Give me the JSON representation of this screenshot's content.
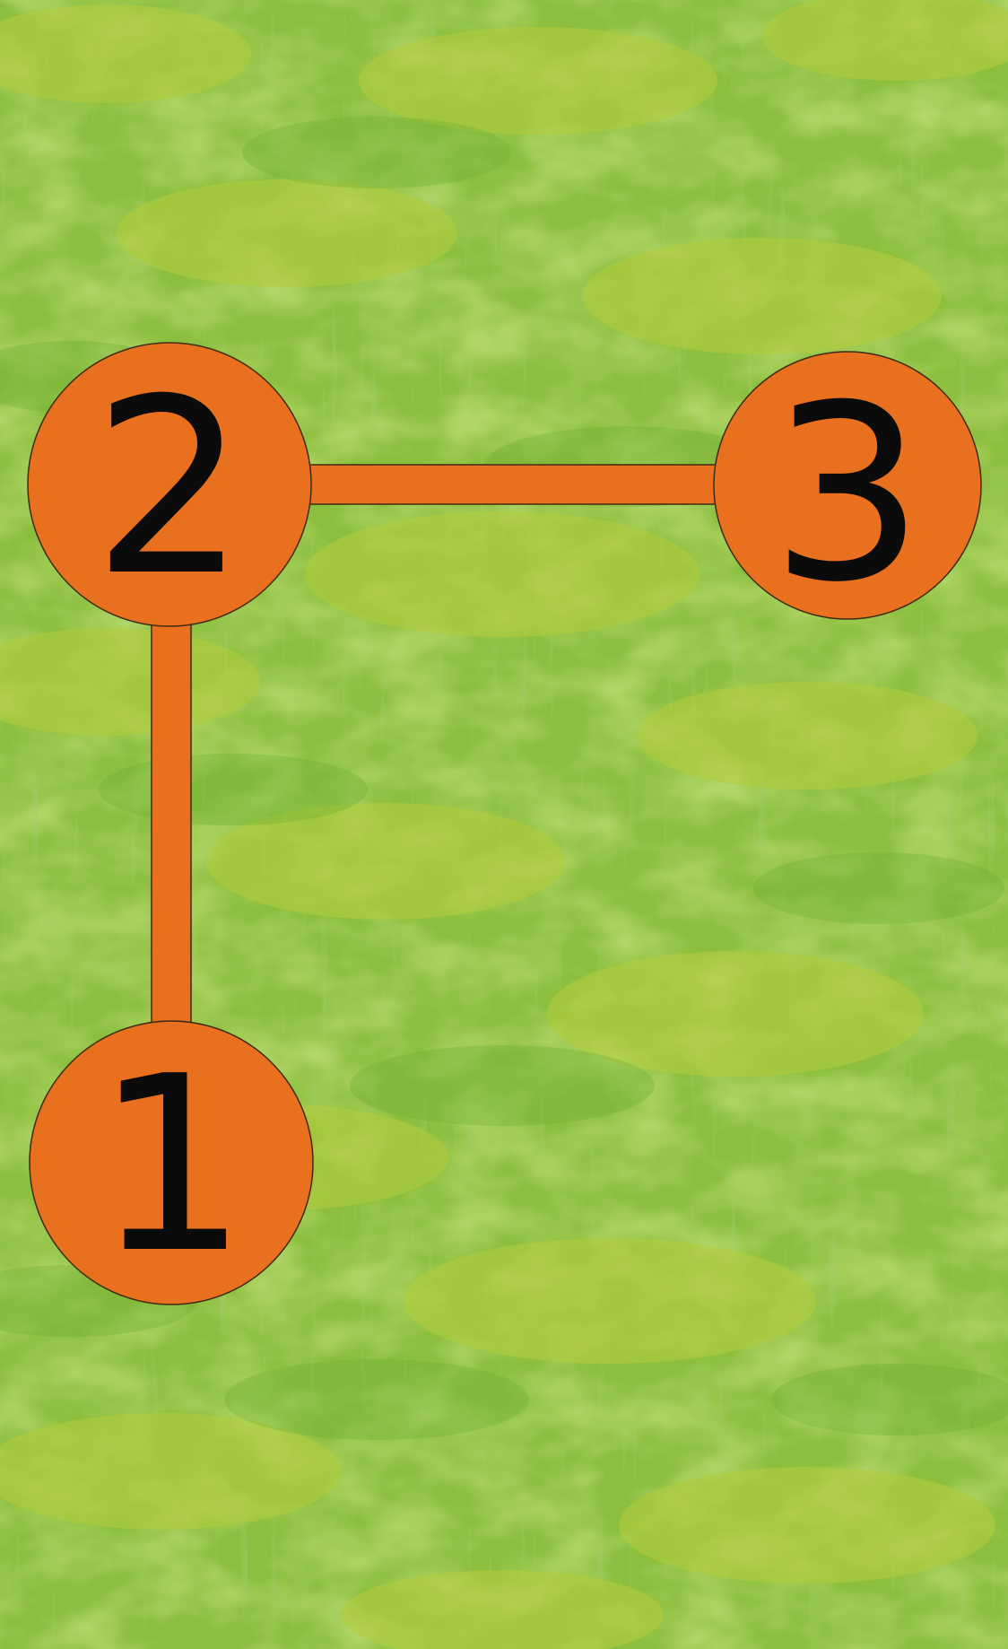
{
  "game": {
    "nodes": [
      {
        "id": "node-1",
        "label": "1"
      },
      {
        "id": "node-2",
        "label": "2"
      },
      {
        "id": "node-3",
        "label": "3"
      }
    ],
    "connections": [
      {
        "from": "1",
        "to": "2"
      },
      {
        "from": "2",
        "to": "3"
      }
    ]
  },
  "colors": {
    "node_fill": "#e8701e",
    "connector": "#e8701e",
    "number": "#0b0b0b",
    "grass_base": "#8cbf3f",
    "grass_light": "#b4cc3c",
    "grass_dark": "#6fae34"
  }
}
